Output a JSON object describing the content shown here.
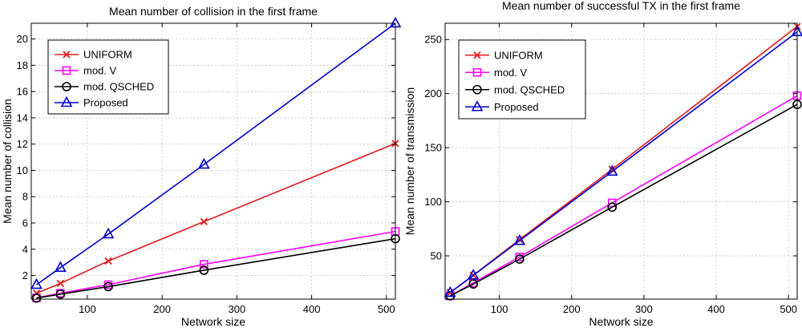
{
  "chart_data": [
    {
      "type": "line",
      "title": "Mean number of collision in the first frame",
      "xlabel": "Network size",
      "ylabel": "Mean number of collision",
      "xlim": [
        25,
        512
      ],
      "ylim": [
        0.2,
        21.2
      ],
      "xticks": [
        100,
        200,
        300,
        400,
        500
      ],
      "yticks": [
        2,
        4,
        6,
        8,
        10,
        12,
        14,
        16,
        18,
        20
      ],
      "grid": true,
      "legend_position": "top-left",
      "x": [
        32,
        64,
        128,
        256,
        512
      ],
      "series": [
        {
          "name": "UNIFORM",
          "color": "#e31a1c",
          "marker": "x",
          "values": [
            0.65,
            1.4,
            3.1,
            6.1,
            12.05
          ]
        },
        {
          "name": "mod. V",
          "color": "#ff00ff",
          "marker": "square",
          "values": [
            0.3,
            0.65,
            1.3,
            2.85,
            5.35
          ]
        },
        {
          "name": "mod. QSCHED",
          "color": "#000000",
          "marker": "circle",
          "values": [
            0.28,
            0.58,
            1.15,
            2.4,
            4.8
          ]
        },
        {
          "name": "Proposed",
          "color": "#0000cc",
          "marker": "triangle",
          "values": [
            1.3,
            2.6,
            5.15,
            10.45,
            21.2
          ]
        }
      ]
    },
    {
      "type": "line",
      "title": "Mean number of successful TX in the first frame",
      "xlabel": "Network size",
      "ylabel": "Mean number of transmission",
      "xlim": [
        25,
        512
      ],
      "ylim": [
        10,
        265
      ],
      "xticks": [
        100,
        200,
        300,
        400,
        500
      ],
      "yticks": [
        50,
        100,
        150,
        200,
        250
      ],
      "grid": true,
      "legend_position": "top-left",
      "x": [
        32,
        64,
        128,
        256,
        512
      ],
      "series": [
        {
          "name": "UNIFORM",
          "color": "#e31a1c",
          "marker": "x",
          "values": [
            16,
            32,
            65,
            130,
            262
          ]
        },
        {
          "name": "mod. V",
          "color": "#ff00ff",
          "marker": "square",
          "values": [
            13,
            25,
            49,
            99,
            198
          ]
        },
        {
          "name": "mod. QSCHED",
          "color": "#000000",
          "marker": "circle",
          "values": [
            13,
            24,
            47,
            95,
            190
          ]
        },
        {
          "name": "Proposed",
          "color": "#0000cc",
          "marker": "triangle",
          "values": [
            16,
            32,
            64,
            128,
            257
          ]
        }
      ]
    }
  ]
}
